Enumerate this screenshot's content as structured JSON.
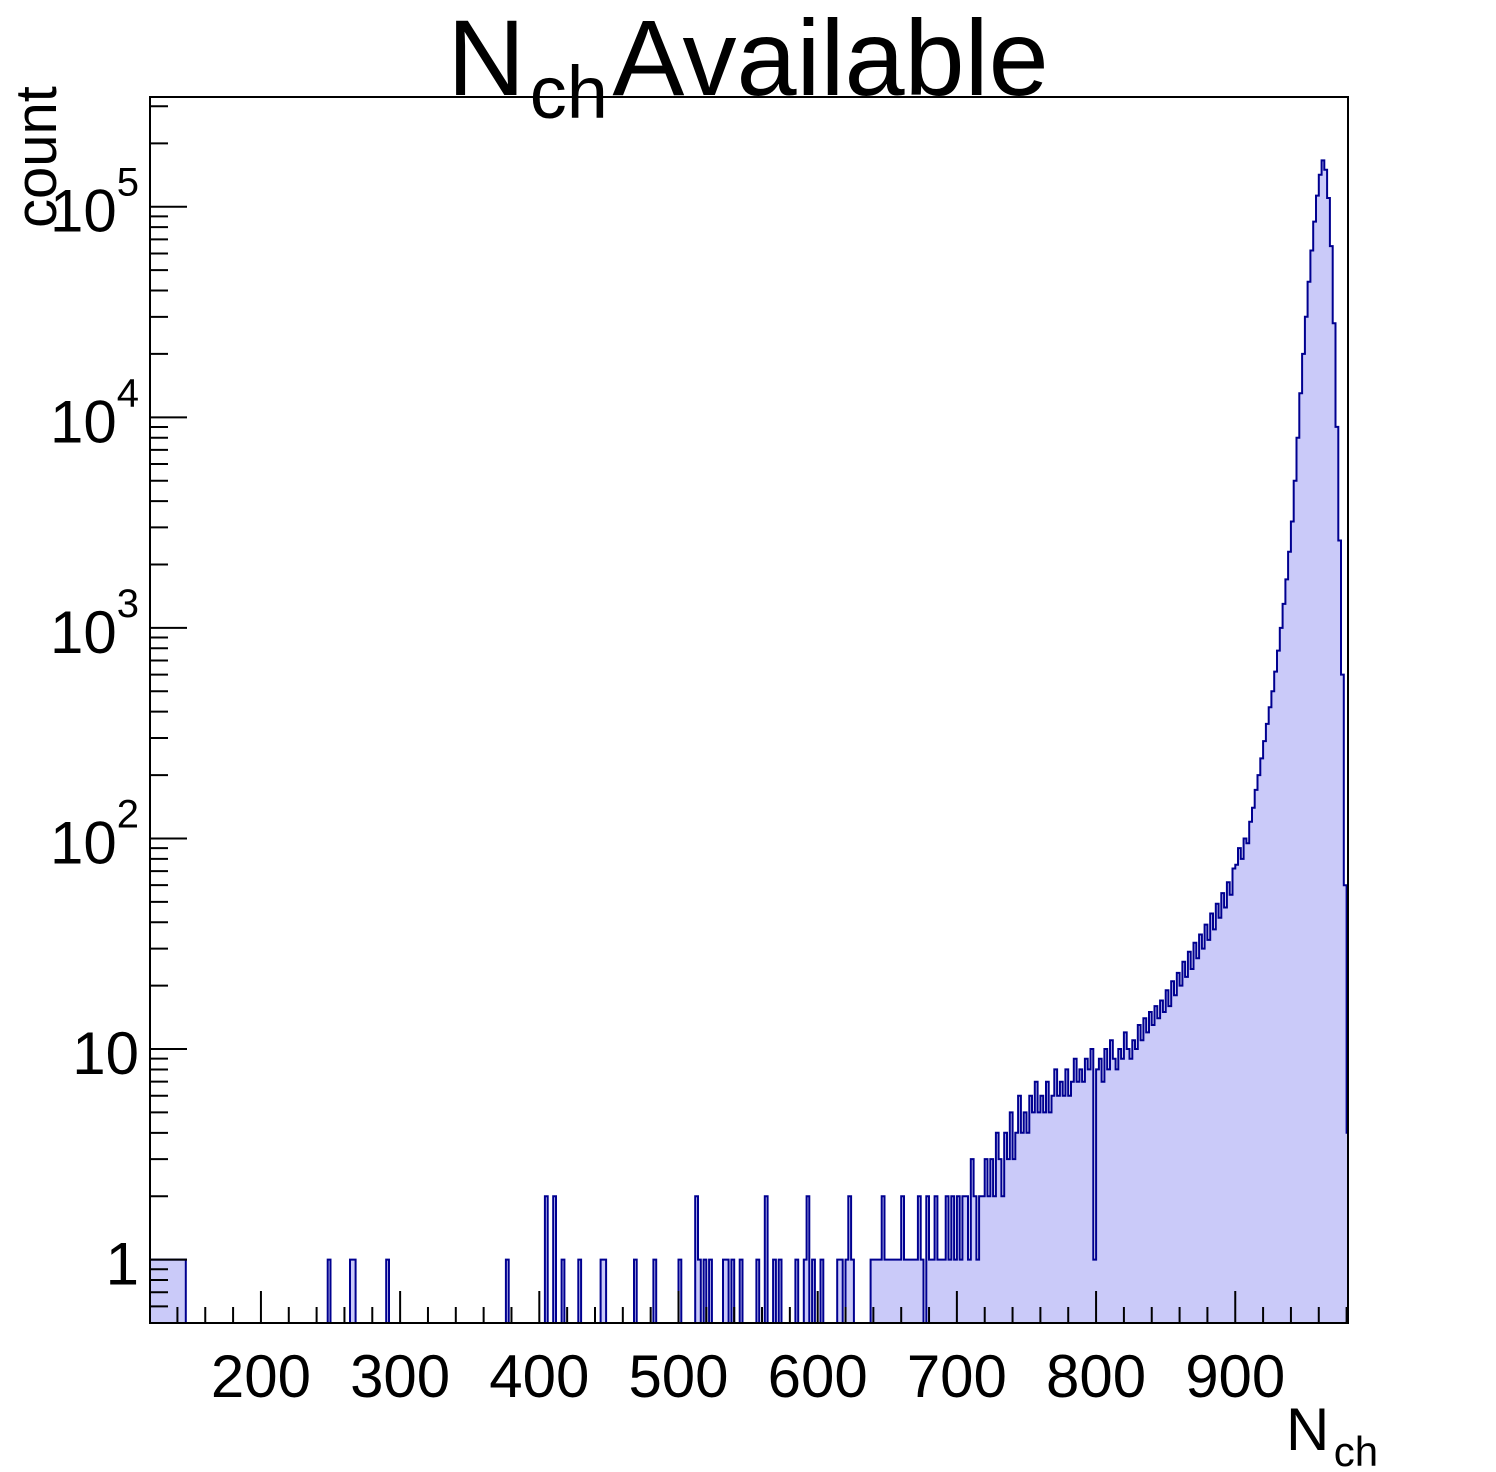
{
  "chart_data": {
    "type": "bar",
    "subtype": "histogram-logy",
    "title": {
      "main": "N",
      "sub": "ch",
      "rest": " Available"
    },
    "xlabel": {
      "main": "N",
      "sub": "ch"
    },
    "ylabel": "count",
    "legend": "none",
    "grid": false,
    "colors": {
      "fill": "#cacaf9",
      "line": "#000090",
      "axis": "#000000"
    },
    "x_axis": {
      "min": 120.3,
      "max": 981,
      "major_ticks": [
        200,
        300,
        400,
        500,
        600,
        700,
        800,
        900
      ],
      "major_labels": [
        "200",
        "300",
        "400",
        "500",
        "600",
        "700",
        "800",
        "900"
      ],
      "minor_step": 20
    },
    "y_axis": {
      "log": true,
      "min": 0.5,
      "max": 332000,
      "decades": [
        {
          "v": 1,
          "t": "1",
          "e": ""
        },
        {
          "v": 10,
          "t": "10",
          "e": ""
        },
        {
          "v": 100,
          "t": "10",
          "e": "2"
        },
        {
          "v": 1000,
          "t": "10",
          "e": "3"
        },
        {
          "v": 10000,
          "t": "10",
          "e": "4"
        },
        {
          "v": 100000,
          "t": "10",
          "e": "5"
        }
      ]
    },
    "bin_width": 2,
    "bins": {
      "plateau": {
        "from": 120,
        "to": 146,
        "count": 1
      },
      "spikes": [
        [
          248,
          1
        ],
        [
          264,
          1
        ],
        [
          267,
          1
        ],
        [
          290,
          1
        ],
        [
          377,
          1
        ],
        [
          404,
          2
        ],
        [
          410,
          2
        ],
        [
          417,
          1
        ],
        [
          428,
          1
        ],
        [
          444,
          1
        ],
        [
          447,
          1
        ],
        [
          469,
          1
        ],
        [
          482,
          1
        ],
        [
          500,
          1
        ],
        [
          512,
          2
        ],
        [
          515,
          1
        ],
        [
          519,
          1
        ],
        [
          523,
          1
        ],
        [
          532,
          1
        ],
        [
          535,
          1
        ],
        [
          539,
          1
        ],
        [
          545,
          1
        ],
        [
          556,
          1
        ],
        [
          562,
          2
        ],
        [
          568,
          1
        ],
        [
          572,
          1
        ],
        [
          585,
          1
        ],
        [
          591,
          1
        ],
        [
          593,
          2
        ],
        [
          597,
          1
        ],
        [
          603,
          1
        ],
        [
          614,
          1
        ],
        [
          617,
          1
        ],
        [
          620,
          1
        ],
        [
          622,
          2
        ],
        [
          625,
          1
        ],
        [
          638,
          1
        ],
        [
          640,
          1
        ],
        [
          642,
          1
        ],
        [
          644,
          1
        ],
        [
          646,
          2
        ],
        [
          648,
          1
        ],
        [
          650,
          1
        ],
        [
          652,
          1
        ],
        [
          654,
          1
        ],
        [
          656,
          1
        ],
        [
          658,
          1
        ],
        [
          660,
          2
        ],
        [
          662,
          1
        ],
        [
          664,
          1
        ],
        [
          666,
          1
        ],
        [
          668,
          1
        ],
        [
          670,
          1
        ],
        [
          673,
          2
        ],
        [
          675,
          1
        ],
        [
          678,
          2
        ],
        [
          680,
          1
        ],
        [
          682,
          1
        ],
        [
          684,
          2
        ],
        [
          686,
          1
        ],
        [
          688,
          1
        ],
        [
          690,
          1
        ],
        [
          692,
          2
        ],
        [
          694,
          1
        ],
        [
          696,
          2
        ],
        [
          698,
          1
        ]
      ],
      "profile": [
        [
          700,
          2
        ],
        [
          702,
          1
        ],
        [
          704,
          2
        ],
        [
          706,
          2
        ],
        [
          708,
          1
        ],
        [
          710,
          3
        ],
        [
          712,
          2
        ],
        [
          714,
          1
        ],
        [
          716,
          2
        ],
        [
          718,
          2
        ],
        [
          720,
          3
        ],
        [
          722,
          2
        ],
        [
          724,
          3
        ],
        [
          726,
          2
        ],
        [
          728,
          4
        ],
        [
          730,
          3
        ],
        [
          732,
          2
        ],
        [
          734,
          4
        ],
        [
          736,
          3
        ],
        [
          738,
          5
        ],
        [
          740,
          3
        ],
        [
          742,
          4
        ],
        [
          744,
          6
        ],
        [
          746,
          4
        ],
        [
          748,
          5
        ],
        [
          750,
          4
        ],
        [
          752,
          6
        ],
        [
          754,
          5
        ],
        [
          756,
          7
        ],
        [
          758,
          5
        ],
        [
          760,
          6
        ],
        [
          762,
          5
        ],
        [
          764,
          7
        ],
        [
          766,
          5
        ],
        [
          768,
          6
        ],
        [
          770,
          8
        ],
        [
          772,
          6
        ],
        [
          774,
          7
        ],
        [
          776,
          6
        ],
        [
          778,
          8
        ],
        [
          780,
          6
        ],
        [
          782,
          7
        ],
        [
          784,
          9
        ],
        [
          786,
          7
        ],
        [
          788,
          8
        ],
        [
          790,
          7
        ],
        [
          792,
          9
        ],
        [
          794,
          8
        ],
        [
          796,
          10
        ],
        [
          798,
          1
        ],
        [
          800,
          8
        ],
        [
          802,
          9
        ],
        [
          804,
          7
        ],
        [
          806,
          10
        ],
        [
          808,
          8
        ],
        [
          810,
          11
        ],
        [
          812,
          9
        ],
        [
          814,
          8
        ],
        [
          816,
          10
        ],
        [
          818,
          9
        ],
        [
          820,
          12
        ],
        [
          822,
          10
        ],
        [
          824,
          9
        ],
        [
          826,
          11
        ],
        [
          828,
          10
        ],
        [
          830,
          13
        ],
        [
          832,
          11
        ],
        [
          834,
          14
        ],
        [
          836,
          12
        ],
        [
          838,
          15
        ],
        [
          840,
          13
        ],
        [
          842,
          16
        ],
        [
          844,
          14
        ],
        [
          846,
          17
        ],
        [
          848,
          15
        ],
        [
          850,
          19
        ],
        [
          852,
          16
        ],
        [
          854,
          21
        ],
        [
          856,
          18
        ],
        [
          858,
          23
        ],
        [
          860,
          20
        ],
        [
          862,
          26
        ],
        [
          864,
          22
        ],
        [
          866,
          29
        ],
        [
          868,
          24
        ],
        [
          870,
          32
        ],
        [
          872,
          27
        ],
        [
          874,
          35
        ],
        [
          876,
          30
        ],
        [
          878,
          39
        ],
        [
          880,
          33
        ],
        [
          882,
          44
        ],
        [
          884,
          37
        ],
        [
          886,
          49
        ],
        [
          888,
          42
        ],
        [
          890,
          55
        ],
        [
          892,
          47
        ],
        [
          894,
          62
        ],
        [
          896,
          54
        ],
        [
          898,
          72
        ],
        [
          900,
          75
        ],
        [
          902,
          90
        ],
        [
          904,
          80
        ],
        [
          906,
          100
        ],
        [
          908,
          95
        ],
        [
          910,
          120
        ],
        [
          912,
          140
        ],
        [
          914,
          170
        ],
        [
          916,
          200
        ],
        [
          918,
          240
        ],
        [
          920,
          290
        ],
        [
          922,
          350
        ],
        [
          924,
          420
        ],
        [
          926,
          500
        ],
        [
          928,
          620
        ],
        [
          930,
          780
        ],
        [
          932,
          1000
        ],
        [
          934,
          1300
        ],
        [
          936,
          1700
        ],
        [
          938,
          2300
        ],
        [
          940,
          3200
        ],
        [
          942,
          5000
        ],
        [
          944,
          8000
        ],
        [
          946,
          13000
        ],
        [
          948,
          20000
        ],
        [
          950,
          30000
        ],
        [
          952,
          44000
        ],
        [
          954,
          62000
        ],
        [
          956,
          85000
        ],
        [
          958,
          113000
        ],
        [
          960,
          142000
        ],
        [
          962,
          166000
        ],
        [
          964,
          150000
        ],
        [
          966,
          110000
        ],
        [
          968,
          65000
        ],
        [
          970,
          28000
        ],
        [
          972,
          9000
        ],
        [
          974,
          2600
        ],
        [
          976,
          600
        ],
        [
          978,
          60
        ],
        [
          980,
          4
        ]
      ]
    }
  }
}
